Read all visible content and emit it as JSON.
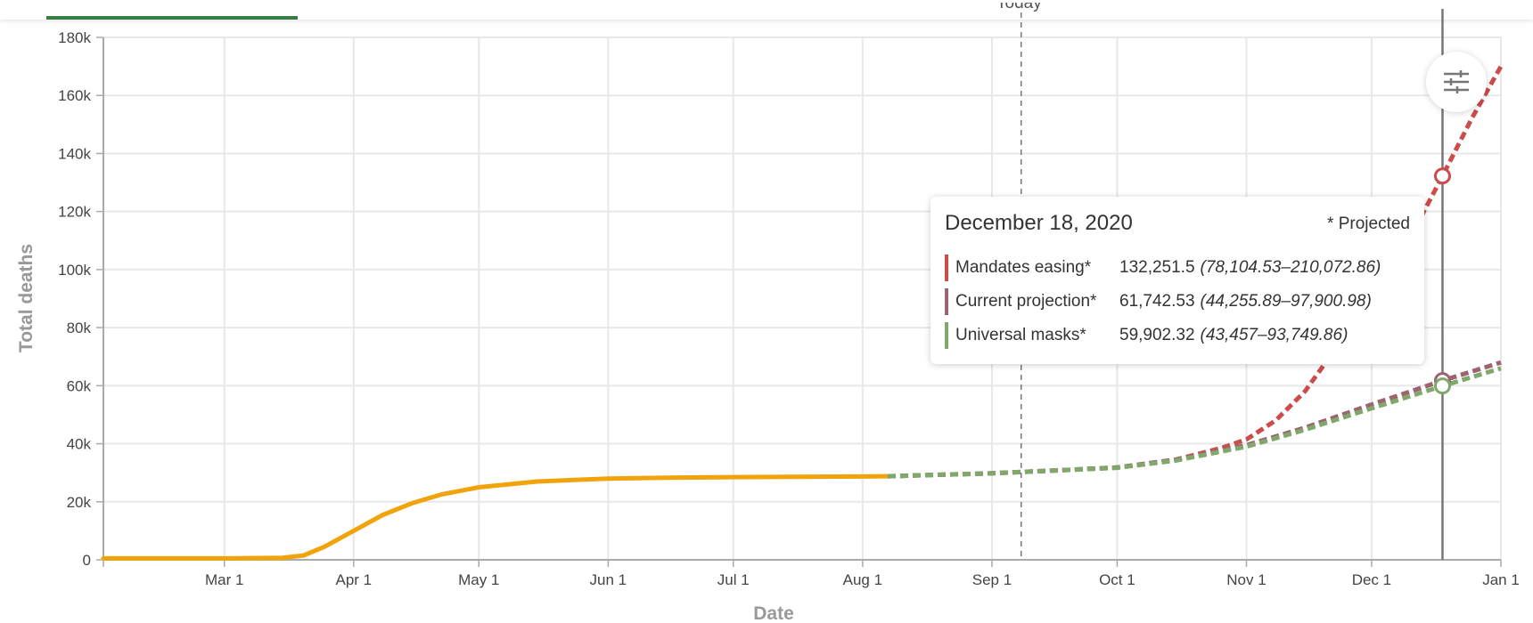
{
  "header": {
    "today_label": "Today"
  },
  "tooltip": {
    "date": "December 18, 2020",
    "projected_note": "* Projected",
    "rows": [
      {
        "name": "Mandates easing*",
        "value": "132,251.5",
        "range": "(78,104.53–210,072.86)",
        "color": "#cc4b4b"
      },
      {
        "name": "Current projection*",
        "value": "61,742.53",
        "range": "(44,255.89–97,900.98)",
        "color": "#9c6470"
      },
      {
        "name": "Universal masks*",
        "value": "59,902.32",
        "range": "(43,457–93,749.86)",
        "color": "#7fa86a"
      }
    ]
  },
  "settings": {
    "icon": "sliders-icon"
  },
  "chart_data": {
    "type": "line",
    "xlabel": "Date",
    "ylabel": "Total deaths",
    "x_axis": {
      "start": "2020-02-01",
      "end": "2021-01-01",
      "ticks": [
        "2020-03-01",
        "2020-04-01",
        "2020-05-01",
        "2020-06-01",
        "2020-07-01",
        "2020-08-01",
        "2020-09-01",
        "2020-10-01",
        "2020-11-01",
        "2020-12-01",
        "2021-01-01"
      ],
      "tick_labels": [
        "Mar 1",
        "Apr 1",
        "May 1",
        "Jun 1",
        "Jul 1",
        "Aug 1",
        "Sep 1",
        "Oct 1",
        "Nov 1",
        "Dec 1",
        "Jan 1"
      ]
    },
    "ylim": [
      0,
      180000
    ],
    "y_ticks": [
      0,
      20000,
      40000,
      60000,
      80000,
      100000,
      120000,
      140000,
      160000,
      180000
    ],
    "y_tick_labels": [
      "0",
      "20k",
      "40k",
      "60k",
      "80k",
      "100k",
      "120k",
      "140k",
      "160k",
      "180k"
    ],
    "grid": true,
    "today_marker": "2020-09-08",
    "hover_marker": "2020-12-18",
    "series": [
      {
        "name": "",
        "style": "solid",
        "color": "#f0a30a",
        "points": [
          [
            "2020-02-01",
            500
          ],
          [
            "2020-03-01",
            500
          ],
          [
            "2020-03-15",
            700
          ],
          [
            "2020-03-20",
            1500
          ],
          [
            "2020-03-25",
            4500
          ],
          [
            "2020-04-01",
            10000
          ],
          [
            "2020-04-08",
            15500
          ],
          [
            "2020-04-15",
            19500
          ],
          [
            "2020-04-22",
            22500
          ],
          [
            "2020-05-01",
            25000
          ],
          [
            "2020-05-15",
            27000
          ],
          [
            "2020-06-01",
            28000
          ],
          [
            "2020-06-15",
            28300
          ],
          [
            "2020-07-01",
            28500
          ],
          [
            "2020-07-15",
            28600
          ],
          [
            "2020-08-01",
            28700
          ],
          [
            "2020-08-07",
            28800
          ]
        ]
      },
      {
        "name": "Mandates easing*",
        "style": "dashed",
        "color": "#cc4b4b",
        "points": [
          [
            "2020-08-07",
            28800
          ],
          [
            "2020-09-01",
            29800
          ],
          [
            "2020-09-15",
            30700
          ],
          [
            "2020-10-01",
            31800
          ],
          [
            "2020-10-15",
            34500
          ],
          [
            "2020-10-26",
            38500
          ],
          [
            "2020-11-01",
            41500
          ],
          [
            "2020-11-08",
            48000
          ],
          [
            "2020-11-15",
            58000
          ],
          [
            "2020-11-22",
            72000
          ],
          [
            "2020-12-01",
            88000
          ],
          [
            "2020-12-08",
            105000
          ],
          [
            "2020-12-15",
            124000
          ],
          [
            "2020-12-18",
            132251.5
          ],
          [
            "2020-12-25",
            152000
          ],
          [
            "2021-01-01",
            170000
          ]
        ]
      },
      {
        "name": "Current projection*",
        "style": "dashed",
        "color": "#9c6470",
        "points": [
          [
            "2020-08-07",
            28800
          ],
          [
            "2020-09-01",
            29800
          ],
          [
            "2020-09-15",
            30700
          ],
          [
            "2020-10-01",
            31800
          ],
          [
            "2020-10-15",
            34500
          ],
          [
            "2020-11-01",
            39500
          ],
          [
            "2020-11-15",
            45500
          ],
          [
            "2020-12-01",
            53500
          ],
          [
            "2020-12-18",
            61742.53
          ],
          [
            "2021-01-01",
            68000
          ]
        ]
      },
      {
        "name": "Universal masks*",
        "style": "dashed",
        "color": "#7fa86a",
        "points": [
          [
            "2020-08-07",
            28800
          ],
          [
            "2020-09-01",
            29800
          ],
          [
            "2020-09-15",
            30700
          ],
          [
            "2020-10-01",
            31700
          ],
          [
            "2020-10-15",
            34200
          ],
          [
            "2020-11-01",
            39000
          ],
          [
            "2020-11-15",
            44800
          ],
          [
            "2020-12-01",
            52200
          ],
          [
            "2020-12-18",
            59902.32
          ],
          [
            "2021-01-01",
            66000
          ]
        ]
      }
    ]
  }
}
